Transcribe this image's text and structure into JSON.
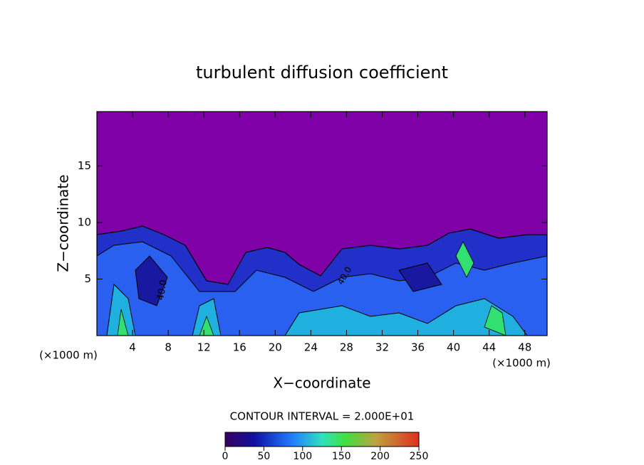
{
  "chart_data": {
    "type": "contour",
    "title": "turbulent diffusion coefficient",
    "xlabel": "X−coordinate",
    "ylabel": "Z−coordinate",
    "x_unit_label": "(×1000 m)",
    "xlim": [
      0,
      50.5
    ],
    "xticks": [
      4,
      8,
      12,
      16,
      20,
      24,
      28,
      32,
      36,
      40,
      44,
      48
    ],
    "ylim": [
      0,
      19.8
    ],
    "yticks": [
      5,
      10,
      15
    ],
    "contour_interval_label": "CONTOUR INTERVAL = 2.000E+01",
    "contour_labels": [
      "40.0",
      "40.0"
    ],
    "colorbar_lim": [
      0,
      250
    ],
    "colorbar_ticks": [
      0,
      50,
      100,
      150,
      200,
      250
    ]
  }
}
